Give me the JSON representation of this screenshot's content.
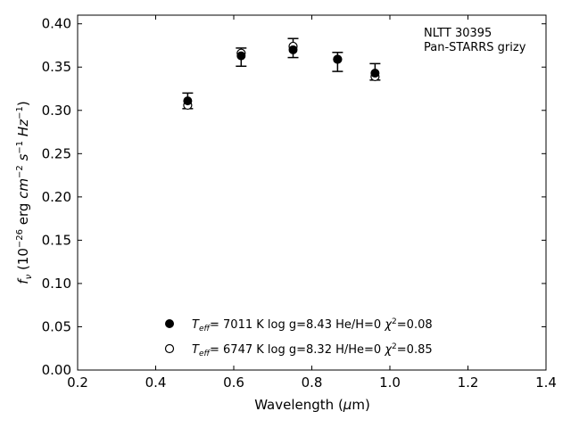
{
  "chart_data": {
    "type": "scatter",
    "xlabel": "Wavelength (μm)",
    "ylabel": "f_ν (10^-26 erg cm^-2 s^-1 Hz^-1)",
    "xlim": [
      0.2,
      1.4
    ],
    "ylim": [
      0.0,
      0.41
    ],
    "xticks": [
      "0.2",
      "0.4",
      "0.6",
      "0.8",
      "1.0",
      "1.2",
      "1.4"
    ],
    "yticks": [
      "0.00",
      "0.05",
      "0.10",
      "0.15",
      "0.20",
      "0.25",
      "0.30",
      "0.35",
      "0.40"
    ],
    "grid": false,
    "annotation": [
      "NLTT 30395",
      "Pan-STARRS grizy"
    ],
    "observed": {
      "x": [
        0.482,
        0.619,
        0.752,
        0.866,
        0.962
      ],
      "y": [
        0.311,
        0.361,
        0.372,
        0.356,
        0.344
      ],
      "err_low": [
        0.302,
        0.351,
        0.361,
        0.345,
        0.335
      ],
      "err_high": [
        0.32,
        0.372,
        0.383,
        0.367,
        0.354
      ]
    },
    "series": [
      {
        "marker": "filled",
        "x": [
          0.482,
          0.619,
          0.752,
          0.866,
          0.962
        ],
        "y": [
          0.311,
          0.363,
          0.37,
          0.359,
          0.343
        ],
        "teff": "7011 K",
        "logg": "log g=8.43",
        "comp": "He/H=0",
        "chi2": "=0.08"
      },
      {
        "marker": "open",
        "x": [
          0.482,
          0.619,
          0.752,
          0.866,
          0.962
        ],
        "y": [
          0.306,
          0.366,
          0.374,
          0.359,
          0.339
        ],
        "teff": "6747 K",
        "logg": "log g=8.32",
        "comp": "H/He=0",
        "chi2": "=0.85"
      }
    ]
  }
}
